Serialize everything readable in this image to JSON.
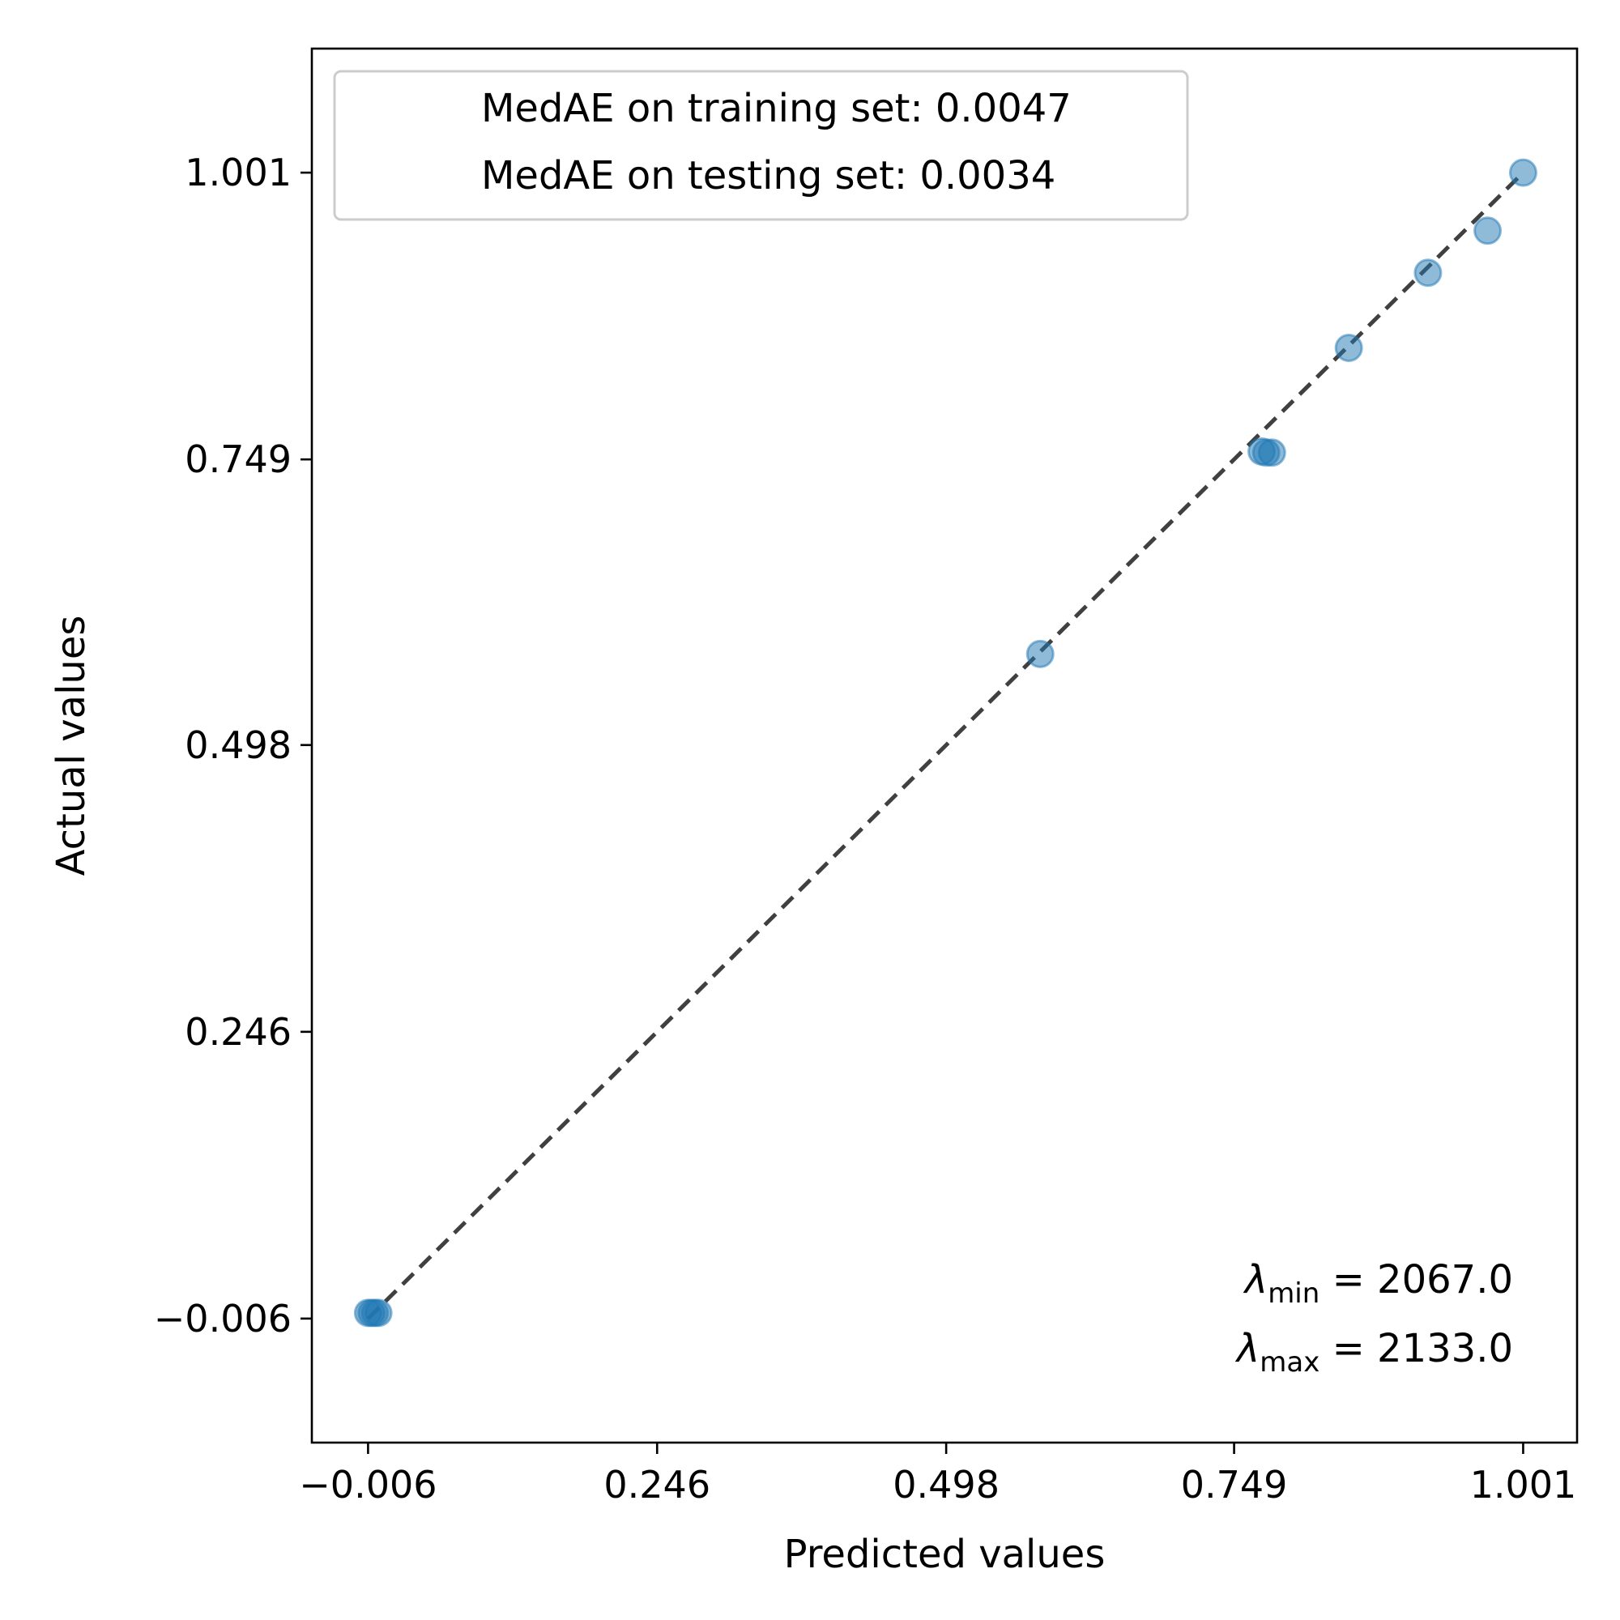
{
  "chart_data": {
    "type": "scatter",
    "title": "",
    "xlabel": "Predicted values",
    "ylabel": "Actual values",
    "xlim": [
      -0.055,
      1.048
    ],
    "ylim": [
      -0.115,
      1.11
    ],
    "xticks": [
      -0.006,
      0.246,
      0.498,
      0.749,
      1.001
    ],
    "xtick_labels": [
      "−0.006",
      "0.246",
      "0.498",
      "0.749",
      "1.001"
    ],
    "yticks": [
      -0.006,
      0.246,
      0.498,
      0.749,
      1.001
    ],
    "ytick_labels": [
      "−0.006",
      "0.246",
      "0.498",
      "0.749",
      "1.001"
    ],
    "grid": false,
    "legend_position": "top-left",
    "legend": [
      "MedAE on training set: 0.0047",
      "MedAE on testing set: 0.0034"
    ],
    "marker_color": "#1f77b4",
    "reference_line": {
      "style": "dashed",
      "color": "#404040",
      "from": [
        -0.006,
        -0.006
      ],
      "to": [
        1.001,
        1.001
      ]
    },
    "annotations": [
      {
        "symbol": "λ",
        "subscript": "min",
        "text": " = 2067.0"
      },
      {
        "symbol": "λ",
        "subscript": "max",
        "text": " = 2133.0"
      }
    ],
    "points": [
      {
        "x": -0.006,
        "y": -0.001
      },
      {
        "x": -0.003,
        "y": -0.001
      },
      {
        "x": 0.0,
        "y": -0.001
      },
      {
        "x": 0.003,
        "y": -0.001
      },
      {
        "x": 0.58,
        "y": 0.578
      },
      {
        "x": 0.773,
        "y": 0.756
      },
      {
        "x": 0.777,
        "y": 0.755
      },
      {
        "x": 0.782,
        "y": 0.755
      },
      {
        "x": 0.849,
        "y": 0.847
      },
      {
        "x": 0.918,
        "y": 0.913
      },
      {
        "x": 0.97,
        "y": 0.95
      },
      {
        "x": 1.001,
        "y": 1.001
      }
    ]
  }
}
